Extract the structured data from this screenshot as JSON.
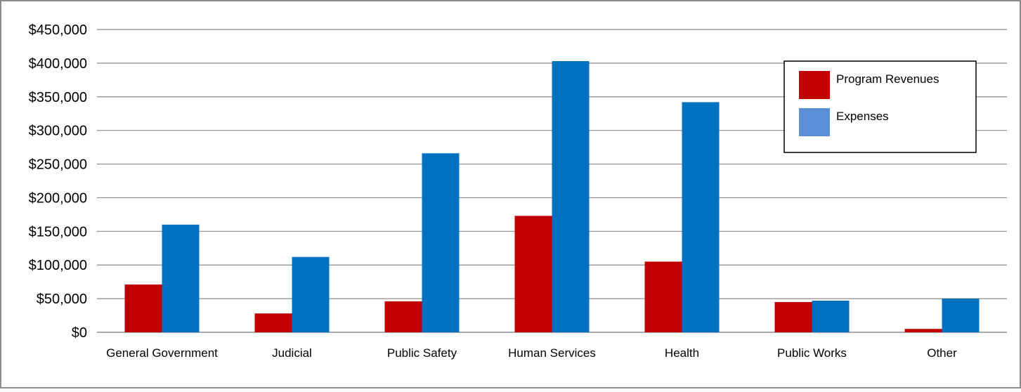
{
  "chart_data": {
    "type": "bar",
    "title": "",
    "xlabel": "",
    "ylabel": "",
    "categories": [
      "General Government",
      "Judicial",
      "Public Safety",
      "Human Services",
      "Health",
      "Public Works",
      "Other"
    ],
    "series": [
      {
        "name": "Program Revenues",
        "color": "#c00000",
        "values": [
          71000,
          28000,
          46000,
          173000,
          105000,
          45000,
          5000
        ]
      },
      {
        "name": "Expenses",
        "color": "#0070c0",
        "values": [
          160000,
          112000,
          266000,
          403000,
          342000,
          47000,
          50000
        ]
      }
    ],
    "ylim": [
      0,
      450000
    ],
    "yticks": [
      "$0",
      "$50,000",
      "$100,000",
      "$150,000",
      "$200,000",
      "$250,000",
      "$300,000",
      "$350,000",
      "$400,000",
      "$450,000"
    ],
    "ytick_values": [
      0,
      50000,
      100000,
      150000,
      200000,
      250000,
      300000,
      350000,
      400000,
      450000
    ],
    "grid": true,
    "legend": {
      "position": "top-right",
      "entries": [
        {
          "label": "Program Revenues",
          "swatch_color": "#c00000"
        },
        {
          "label": "Expenses",
          "swatch_color": "#5b8fd6"
        }
      ]
    }
  }
}
